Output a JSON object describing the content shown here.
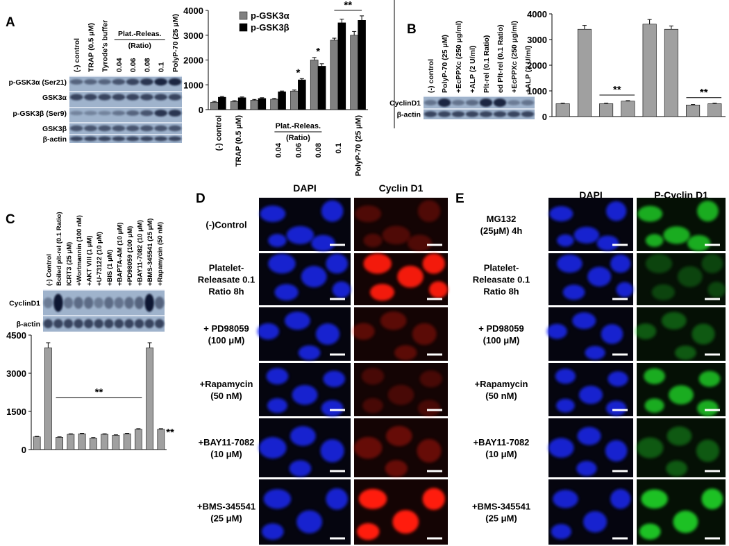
{
  "panel_labels": [
    "A",
    "B",
    "C",
    "D",
    "E"
  ],
  "blots": [
    {
      "lanes": [
        "(-) control",
        "TRAP (0.5 μM)",
        "Tyrode's buffer",
        "0.04",
        "0.06",
        "0.08",
        "0.1",
        "PolyP-70 (25 μM)"
      ],
      "group_label": [
        "Plat.-Releas.",
        "(Ratio)"
      ],
      "rows": [
        "p-GSK3α (Ser21)",
        "GSK3α",
        "p-GSK3β (Ser9)",
        "GSK3β",
        "β-actin"
      ]
    },
    {
      "lanes": [
        "(-) control",
        "PolyP-70 (25 μM)",
        "+EcPPXc (250 μg/ml)",
        "+ALP (2 U/ml)",
        "Plt-rel (0.1 Ratio)",
        "ed Plt-rel (0.1 Ratio)",
        "+EcPPXc (250 μg/ml)",
        "+ALP (2 U/ml)"
      ],
      "rows": [
        "CyclinD1",
        "β-actin"
      ]
    },
    {
      "lanes": [
        "(-) Control",
        "Boiled plt-rel (0.1 Ratio)",
        "ICRT3 (25 μM)",
        "+Wortmannin (100 nM)",
        "+AKT VIII (1 μM)",
        "+U-73122 (10 μM)",
        "+BIS (1 μM)",
        "+BAPTA-AM (10 μM)",
        "+PD98059 (100 μM)",
        "+BAY11-7082 (10 μM)",
        "+BMS-345541 (25 μM)",
        "+Rapamycin (50 nM)"
      ],
      "rows": [
        "CyclinD1",
        "β-actin"
      ]
    }
  ],
  "chart_data": [
    {
      "type": "bar",
      "categories": [
        "(-) control",
        "TRAP (0.5 μM)",
        null,
        "0.04",
        "0.06",
        "0.08",
        "0.1",
        "PolyP-70 (25 μM)"
      ],
      "group_label": [
        "Plat.-Releas.",
        "(Ratio)"
      ],
      "series": [
        {
          "name": "p-GSK3α",
          "color": "#808080",
          "values": [
            300,
            330,
            380,
            420,
            750,
            2000,
            2800,
            3000
          ],
          "errors": [
            30,
            30,
            30,
            30,
            40,
            100,
            80,
            150
          ]
        },
        {
          "name": "p-GSK3β",
          "color": "#000000",
          "values": [
            500,
            480,
            450,
            720,
            1200,
            1750,
            3500,
            3600
          ],
          "errors": [
            30,
            30,
            30,
            30,
            50,
            100,
            150,
            180
          ]
        }
      ],
      "annotations": [
        "*",
        "*",
        "**"
      ],
      "ylim": [
        0,
        4000
      ],
      "yticks": [
        0,
        1000,
        2000,
        3000,
        4000
      ],
      "legend": "top-left"
    },
    {
      "type": "bar",
      "values": [
        500,
        3400,
        500,
        600,
        3600,
        3400,
        450,
        500
      ],
      "errors": [
        20,
        150,
        20,
        20,
        180,
        130,
        20,
        20
      ],
      "color": "#a0a0a0",
      "annotations": [
        "**",
        "**"
      ],
      "ylim": [
        0,
        4000
      ],
      "yticks": [
        0,
        1000,
        2000,
        3000,
        4000
      ]
    },
    {
      "type": "bar",
      "values": [
        500,
        4000,
        480,
        600,
        620,
        450,
        600,
        560,
        620,
        800,
        4000,
        800
      ],
      "errors": [
        20,
        200,
        20,
        20,
        20,
        20,
        20,
        20,
        20,
        20,
        200,
        20
      ],
      "color": "#a0a0a0",
      "annotations": [
        "**",
        "**"
      ],
      "ylim": [
        0,
        4500
      ],
      "yticks": [
        0,
        1500,
        3000,
        4500
      ]
    }
  ],
  "micrographs": [
    {
      "columns": [
        "DAPI",
        "Cyclin D1"
      ],
      "rows": [
        [
          "(-)Control"
        ],
        [
          "Platelet-",
          "Releasate 0.1",
          "Ratio 8h"
        ],
        [
          "+ PD98059",
          "(100 μM)"
        ],
        [
          "+Rapamycin",
          "(50 nM)"
        ],
        [
          "+BAY11-7082",
          "(10 μM)"
        ],
        [
          "+BMS-345541",
          "(25 μM)"
        ]
      ]
    },
    {
      "columns": [
        "DAPI",
        "P-Cyclin D1"
      ],
      "rows": [
        [
          "MG132",
          "(25μM) 4h"
        ],
        [
          "Platelet-",
          "Releasate  0.1",
          "Ratio 8h"
        ],
        [
          "+ PD98059",
          "(100 μM)"
        ],
        [
          "+Rapamycin",
          "(50 nM)"
        ],
        [
          "+BAY11-7082",
          "(10 μM)"
        ],
        [
          "+BMS-345541",
          "(25 μM)"
        ]
      ]
    }
  ]
}
